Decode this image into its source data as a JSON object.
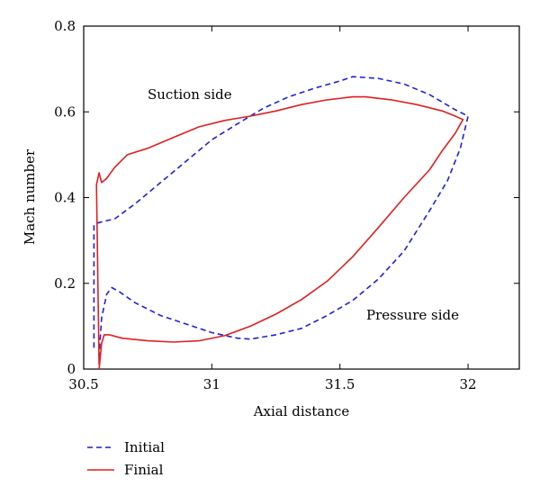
{
  "chart_data": {
    "type": "line",
    "xlabel": "Axial distance",
    "ylabel": "Mach number",
    "xlim": [
      30.5,
      32.2
    ],
    "ylim": [
      0,
      0.8
    ],
    "x_ticks": [
      "30.5",
      "31",
      "31.5",
      "32"
    ],
    "x_tick_values": [
      30.5,
      31.0,
      31.5,
      32.0
    ],
    "y_ticks": [
      "0",
      "0.2",
      "0.4",
      "0.6",
      "0.8"
    ],
    "y_tick_values": [
      0,
      0.2,
      0.4,
      0.6,
      0.8
    ],
    "grid": false,
    "legend_position": "bottom-left, below plot",
    "annotations": [
      {
        "text": "Suction side",
        "x": 30.95,
        "y": 0.64
      },
      {
        "text": "Pressure side",
        "x": 31.8,
        "y": 0.12
      }
    ],
    "series": [
      {
        "name": "Initial",
        "color": "#1f1fe0",
        "dash": "dashed",
        "x": [
          30.54,
          30.54,
          30.55,
          30.58,
          30.62,
          30.7,
          30.8,
          30.9,
          31.0,
          31.1,
          31.2,
          31.3,
          31.4,
          31.5,
          31.55,
          31.65,
          31.75,
          31.85,
          31.95,
          32.0,
          31.97,
          31.92,
          31.85,
          31.75,
          31.65,
          31.55,
          31.45,
          31.35,
          31.25,
          31.15,
          31.1,
          31.0,
          30.9,
          30.8,
          30.7,
          30.64,
          30.61,
          30.59,
          30.57,
          30.56
        ],
        "y": [
          0.05,
          0.335,
          0.34,
          0.345,
          0.35,
          0.385,
          0.435,
          0.485,
          0.535,
          0.572,
          0.608,
          0.635,
          0.655,
          0.672,
          0.682,
          0.678,
          0.665,
          0.64,
          0.605,
          0.59,
          0.515,
          0.44,
          0.37,
          0.275,
          0.21,
          0.16,
          0.125,
          0.095,
          0.08,
          0.07,
          0.072,
          0.085,
          0.105,
          0.125,
          0.155,
          0.18,
          0.19,
          0.175,
          0.12,
          0.03
        ]
      },
      {
        "name": "Finial",
        "color": "#e01f1f",
        "dash": "solid",
        "x": [
          30.56,
          30.55,
          30.55,
          30.56,
          30.57,
          30.59,
          30.62,
          30.67,
          30.75,
          30.85,
          30.95,
          31.05,
          31.15,
          31.25,
          31.35,
          31.45,
          31.55,
          31.6,
          31.7,
          31.8,
          31.9,
          31.95,
          31.98,
          31.95,
          31.9,
          31.85,
          31.75,
          31.65,
          31.55,
          31.45,
          31.35,
          31.25,
          31.15,
          31.05,
          30.95,
          30.85,
          30.75,
          30.65,
          30.6,
          30.58,
          30.57,
          30.56
        ],
        "y": [
          0.01,
          0.43,
          0.43,
          0.458,
          0.435,
          0.445,
          0.47,
          0.5,
          0.515,
          0.54,
          0.565,
          0.58,
          0.59,
          0.602,
          0.617,
          0.628,
          0.635,
          0.635,
          0.628,
          0.617,
          0.602,
          0.59,
          0.582,
          0.55,
          0.51,
          0.465,
          0.4,
          0.33,
          0.262,
          0.205,
          0.162,
          0.128,
          0.1,
          0.078,
          0.066,
          0.063,
          0.066,
          0.072,
          0.08,
          0.08,
          0.06,
          0.0
        ]
      }
    ]
  }
}
